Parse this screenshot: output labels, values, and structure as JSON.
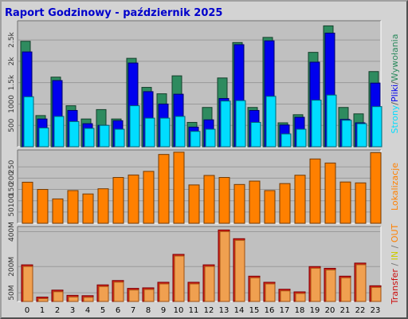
{
  "header": {
    "title": "Raport Godzinowy -  październik 2025"
  },
  "chart_data": [
    {
      "type": "bar",
      "name": "hits-pages-files",
      "categories": [
        "0",
        "1",
        "2",
        "3",
        "4",
        "5",
        "6",
        "7",
        "8",
        "9",
        "10",
        "11",
        "12",
        "13",
        "14",
        "15",
        "16",
        "17",
        "18",
        "19",
        "20",
        "21",
        "22",
        "23"
      ],
      "series": [
        {
          "name": "Wywołania",
          "values": [
            2470,
            730,
            1630,
            960,
            650,
            870,
            650,
            2070,
            1390,
            1240,
            1660,
            570,
            920,
            1610,
            2440,
            920,
            2560,
            560,
            750,
            2210,
            2830,
            920,
            770,
            1760
          ]
        },
        {
          "name": "Pliki",
          "values": [
            2220,
            650,
            1550,
            850,
            540,
            500,
            610,
            1960,
            1290,
            1000,
            1230,
            460,
            630,
            1130,
            2390,
            850,
            2480,
            510,
            690,
            1980,
            2660,
            640,
            560,
            1490
          ]
        },
        {
          "name": "Strony",
          "values": [
            1170,
            440,
            710,
            590,
            430,
            500,
            410,
            960,
            670,
            670,
            710,
            360,
            410,
            1070,
            1080,
            570,
            1180,
            300,
            410,
            1090,
            1210,
            620,
            540,
            940
          ]
        }
      ],
      "yticks": [
        "500",
        "1000",
        "1.5k",
        "2k",
        "2.5k"
      ],
      "ytick_values": [
        500,
        1000,
        1500,
        2000,
        2500
      ],
      "ylim": [
        0,
        2950
      ],
      "ylabel": [
        "Strony",
        "/",
        "Pliki",
        "/",
        "Wywołania"
      ],
      "colors": [
        "#2e8b5f",
        "#0000ee",
        "#00ddff"
      ]
    },
    {
      "type": "bar",
      "name": "visits",
      "categories": [
        "0",
        "1",
        "2",
        "3",
        "4",
        "5",
        "6",
        "7",
        "8",
        "9",
        "10",
        "11",
        "12",
        "13",
        "14",
        "15",
        "16",
        "17",
        "18",
        "19",
        "20",
        "21",
        "22",
        "23"
      ],
      "series": [
        {
          "name": "Lokalizacje",
          "values": [
            182,
            150,
            108,
            145,
            130,
            153,
            203,
            214,
            230,
            305,
            315,
            170,
            212,
            203,
            172,
            187,
            145,
            176,
            213,
            285,
            267,
            183,
            179,
            313
          ]
        }
      ],
      "yticks": [
        "50",
        "100",
        "150",
        "200",
        "250"
      ],
      "ytick_values": [
        50,
        100,
        150,
        200,
        250
      ],
      "ylim": [
        0,
        325
      ],
      "ylabel": [
        "Lokalizacje"
      ],
      "colors": [
        "#ff8000"
      ]
    },
    {
      "type": "bar",
      "name": "transfer",
      "categories": [
        "0",
        "1",
        "2",
        "3",
        "4",
        "5",
        "6",
        "7",
        "8",
        "9",
        "10",
        "11",
        "12",
        "13",
        "14",
        "15",
        "16",
        "17",
        "18",
        "19",
        "20",
        "21",
        "22",
        "23"
      ],
      "series": [
        {
          "name": "Transfer",
          "values": [
            210,
            25,
            65,
            35,
            33,
            95,
            120,
            75,
            78,
            110,
            270,
            110,
            210,
            410,
            360,
            145,
            110,
            70,
            55,
            200,
            190,
            145,
            220,
            90
          ]
        },
        {
          "name": "IN",
          "values": [
            0,
            0,
            0,
            0,
            0,
            0,
            0,
            0,
            0,
            0,
            0,
            0,
            0,
            0,
            0,
            0,
            0,
            0,
            0,
            0,
            0,
            0,
            0,
            0
          ]
        },
        {
          "name": "OUT",
          "values": [
            0,
            0,
            0,
            0,
            0,
            0,
            0,
            0,
            0,
            0,
            0,
            0,
            0,
            0,
            0,
            0,
            0,
            0,
            0,
            0,
            0,
            0,
            0,
            0
          ]
        }
      ],
      "yticks": [
        "50M",
        "200M",
        "400M"
      ],
      "ytick_values": [
        50,
        200,
        400
      ],
      "ylim": [
        0,
        430
      ],
      "ylabel": [
        "Transfer",
        " / ",
        "IN",
        " / ",
        "OUT"
      ],
      "colors": [
        "#dd1c1c",
        "#cccc00",
        "#ff8000"
      ]
    }
  ]
}
